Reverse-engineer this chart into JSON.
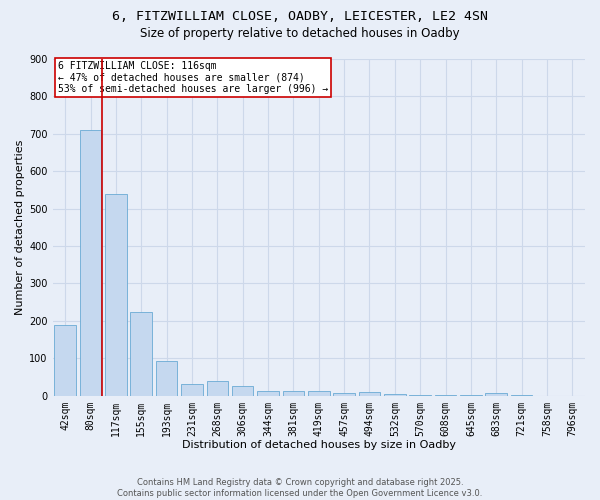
{
  "title_line1": "6, FITZWILLIAM CLOSE, OADBY, LEICESTER, LE2 4SN",
  "title_line2": "Size of property relative to detached houses in Oadby",
  "xlabel": "Distribution of detached houses by size in Oadby",
  "ylabel": "Number of detached properties",
  "bar_labels": [
    "42sqm",
    "80sqm",
    "117sqm",
    "155sqm",
    "193sqm",
    "231sqm",
    "268sqm",
    "306sqm",
    "344sqm",
    "381sqm",
    "419sqm",
    "457sqm",
    "494sqm",
    "532sqm",
    "570sqm",
    "608sqm",
    "645sqm",
    "683sqm",
    "721sqm",
    "758sqm",
    "796sqm"
  ],
  "bar_values": [
    190,
    710,
    540,
    225,
    92,
    30,
    40,
    25,
    13,
    13,
    12,
    7,
    9,
    5,
    2,
    1,
    1,
    8,
    1,
    0,
    0
  ],
  "bar_color": "#c5d8ef",
  "bar_edge_color": "#6aaad4",
  "grid_color": "#cdd8ea",
  "background_color": "#e8eef8",
  "vline_color": "#cc0000",
  "annotation_text": "6 FITZWILLIAM CLOSE: 116sqm\n← 47% of detached houses are smaller (874)\n53% of semi-detached houses are larger (996) →",
  "annotation_box_color": "#ffffff",
  "annotation_box_edge": "#cc0000",
  "ylim": [
    0,
    900
  ],
  "yticks": [
    0,
    100,
    200,
    300,
    400,
    500,
    600,
    700,
    800,
    900
  ],
  "footer_line1": "Contains HM Land Registry data © Crown copyright and database right 2025.",
  "footer_line2": "Contains public sector information licensed under the Open Government Licence v3.0.",
  "title_fontsize": 9.5,
  "subtitle_fontsize": 8.5,
  "axis_label_fontsize": 8,
  "tick_fontsize": 7,
  "annotation_fontsize": 7,
  "footer_fontsize": 6
}
